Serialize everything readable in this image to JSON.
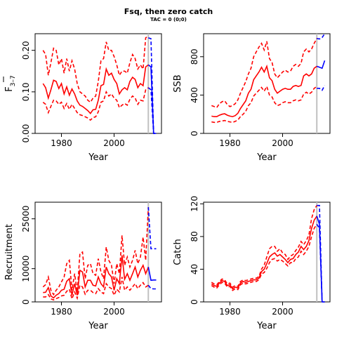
{
  "title": "Fsq, then zero catch",
  "subtitle": "TAC = 0 (0;0)",
  "colors": {
    "historical": "#ff0000",
    "projection": "#0000ff",
    "reference_line": "#c0c0c0",
    "axes": "#000000"
  },
  "chart_data": [
    {
      "type": "line",
      "panel": "top-left",
      "xlabel": "Year",
      "ylabel": "F̄3–7",
      "ylabel_main": "F",
      "ylabel_sub": "3–7",
      "xlim": [
        1970,
        2018
      ],
      "ylim": [
        0,
        0.24
      ],
      "xticks": [
        "1980",
        "2000"
      ],
      "yticks": [
        "0.00",
        "0.10",
        "0.20"
      ],
      "reference_year": 2013,
      "historical": {
        "x": [
          1973,
          1974,
          1975,
          1976,
          1977,
          1978,
          1979,
          1980,
          1981,
          1982,
          1983,
          1984,
          1985,
          1986,
          1987,
          1988,
          1989,
          1990,
          1991,
          1992,
          1993,
          1994,
          1995,
          1996,
          1997,
          1998,
          1999,
          2000,
          2001,
          2002,
          2003,
          2004,
          2005,
          2006,
          2007,
          2008,
          2009,
          2010,
          2011,
          2012,
          2013
        ],
        "median": [
          0.12,
          0.11,
          0.085,
          0.105,
          0.128,
          0.125,
          0.108,
          0.12,
          0.095,
          0.112,
          0.092,
          0.107,
          0.095,
          0.078,
          0.068,
          0.065,
          0.06,
          0.055,
          0.048,
          0.057,
          0.058,
          0.08,
          0.115,
          0.118,
          0.155,
          0.14,
          0.145,
          0.13,
          0.12,
          0.095,
          0.105,
          0.11,
          0.105,
          0.125,
          0.135,
          0.13,
          0.11,
          0.12,
          0.115,
          0.16,
          0.165
        ],
        "upper": [
          0.2,
          0.19,
          0.14,
          0.17,
          0.205,
          0.2,
          0.165,
          0.18,
          0.145,
          0.18,
          0.15,
          0.175,
          0.155,
          0.12,
          0.1,
          0.095,
          0.09,
          0.08,
          0.075,
          0.085,
          0.09,
          0.125,
          0.175,
          0.18,
          0.22,
          0.2,
          0.2,
          0.185,
          0.165,
          0.14,
          0.15,
          0.15,
          0.145,
          0.17,
          0.19,
          0.18,
          0.155,
          0.165,
          0.155,
          0.23,
          0.235
        ],
        "lower": [
          0.075,
          0.07,
          0.05,
          0.065,
          0.08,
          0.078,
          0.07,
          0.075,
          0.06,
          0.072,
          0.058,
          0.07,
          0.06,
          0.05,
          0.045,
          0.043,
          0.04,
          0.037,
          0.032,
          0.038,
          0.04,
          0.052,
          0.075,
          0.078,
          0.1,
          0.09,
          0.095,
          0.085,
          0.08,
          0.062,
          0.068,
          0.072,
          0.068,
          0.082,
          0.09,
          0.085,
          0.07,
          0.08,
          0.078,
          0.105,
          0.11
        ]
      },
      "projection": {
        "x": [
          2013,
          2014,
          2015,
          2016
        ],
        "median": [
          0.165,
          0.16,
          0.0,
          0.0
        ],
        "upper": [
          0.23,
          0.228,
          0.0,
          0.0
        ],
        "lower": [
          0.11,
          0.105,
          0.0,
          0.0
        ]
      }
    },
    {
      "type": "line",
      "panel": "top-right",
      "xlabel": "Year",
      "ylabel": "SSB",
      "xlim": [
        1970,
        2018
      ],
      "ylim": [
        0,
        1040
      ],
      "xticks": [
        "1980",
        "2000"
      ],
      "yticks": [
        "0",
        "400",
        "800"
      ],
      "reference_year": 2013,
      "historical": {
        "x": [
          1973,
          1974,
          1975,
          1976,
          1977,
          1978,
          1979,
          1980,
          1981,
          1982,
          1983,
          1984,
          1985,
          1986,
          1987,
          1988,
          1989,
          1990,
          1991,
          1992,
          1993,
          1994,
          1995,
          1996,
          1997,
          1998,
          1999,
          2000,
          2001,
          2002,
          2003,
          2004,
          2005,
          2006,
          2007,
          2008,
          2009,
          2010,
          2011,
          2012,
          2013
        ],
        "median": [
          180,
          175,
          175,
          190,
          200,
          205,
          190,
          180,
          175,
          185,
          210,
          260,
          300,
          340,
          420,
          460,
          560,
          600,
          640,
          690,
          640,
          700,
          580,
          550,
          460,
          420,
          440,
          460,
          470,
          460,
          460,
          490,
          500,
          490,
          500,
          600,
          620,
          600,
          620,
          680,
          700
        ],
        "upper": [
          290,
          280,
          270,
          310,
          330,
          340,
          300,
          280,
          290,
          310,
          350,
          420,
          480,
          540,
          620,
          680,
          800,
          850,
          900,
          940,
          870,
          960,
          780,
          740,
          620,
          580,
          610,
          640,
          660,
          640,
          650,
          700,
          720,
          700,
          730,
          850,
          880,
          850,
          880,
          940,
          990
        ],
        "lower": [
          120,
          115,
          115,
          125,
          130,
          135,
          125,
          120,
          115,
          125,
          140,
          175,
          200,
          230,
          290,
          320,
          390,
          420,
          450,
          480,
          440,
          490,
          400,
          380,
          320,
          290,
          300,
          320,
          330,
          320,
          320,
          340,
          350,
          340,
          350,
          410,
          430,
          410,
          430,
          470,
          490
        ]
      },
      "projection": {
        "x": [
          2013,
          2014,
          2015,
          2016
        ],
        "median": [
          700,
          690,
          680,
          760
        ],
        "upper": [
          990,
          985,
          1000,
          1040
        ],
        "lower": [
          470,
          470,
          450,
          500
        ]
      }
    },
    {
      "type": "line",
      "panel": "bottom-left",
      "xlabel": "Year",
      "ylabel": "Recruitment",
      "xlim": [
        1970,
        2018
      ],
      "ylim": [
        0,
        30000
      ],
      "xticks": [
        "1980",
        "2000"
      ],
      "yticks": [
        "0",
        "10000",
        "25000"
      ],
      "reference_year": 2013,
      "historical": {
        "x": [
          1973,
          1974,
          1975,
          1976,
          1977,
          1978,
          1979,
          1980,
          1981,
          1982,
          1983,
          1984,
          1985,
          1986,
          1987,
          1988,
          1989,
          1990,
          1991,
          1992,
          1993,
          1994,
          1995,
          1996,
          1997,
          1998,
          1999,
          2000,
          2001,
          2002,
          2003,
          2004,
          2005,
          2006,
          2007,
          2008,
          2009,
          2010,
          2011,
          2012,
          2013
        ],
        "median": [
          2800,
          2900,
          4300,
          1800,
          1200,
          2000,
          2500,
          3500,
          3800,
          6200,
          7000,
          2000,
          5500,
          2000,
          9500,
          9000,
          4500,
          6500,
          6500,
          5000,
          4800,
          7500,
          5500,
          4500,
          10500,
          8500,
          7500,
          3500,
          7000,
          5500,
          14000,
          6800,
          8500,
          6500,
          8500,
          10500,
          7500,
          9500,
          11000,
          8500,
          10500
        ],
        "upper": [
          4500,
          5200,
          7500,
          3500,
          2200,
          3500,
          4500,
          6000,
          7500,
          11500,
          12500,
          3500,
          8500,
          3000,
          14500,
          15000,
          7000,
          11000,
          11500,
          8500,
          8000,
          13000,
          9000,
          7000,
          16500,
          12500,
          11000,
          5500,
          11500,
          8500,
          20000,
          11000,
          13500,
          10500,
          12500,
          15500,
          11500,
          13500,
          19500,
          12500,
          28500
        ],
        "lower": [
          1500,
          1500,
          2200,
          900,
          600,
          1000,
          1300,
          1800,
          2000,
          3200,
          3800,
          900,
          3000,
          1100,
          5000,
          4500,
          2300,
          3500,
          3500,
          2800,
          2500,
          4000,
          3000,
          2500,
          5500,
          4500,
          4000,
          2000,
          3800,
          3000,
          7500,
          3500,
          4500,
          3500,
          4500,
          5500,
          4000,
          5000,
          5800,
          4500,
          5000
        ]
      },
      "projection": {
        "x": [
          2013,
          2014,
          2015,
          2016
        ],
        "median": [
          10500,
          6500,
          6600,
          6600
        ],
        "upper": [
          28500,
          16000,
          16000,
          16000
        ],
        "lower": [
          5000,
          4000,
          3900,
          3900
        ]
      }
    },
    {
      "type": "line",
      "panel": "bottom-right",
      "xlabel": "Year",
      "ylabel": "Catch",
      "xlim": [
        1970,
        2018
      ],
      "ylim": [
        0,
        122
      ],
      "xticks": [
        "1980",
        "2000"
      ],
      "yticks": [
        "0",
        "40",
        "80",
        "120"
      ],
      "reference_year": 2013,
      "historical": {
        "x": [
          1973,
          1974,
          1975,
          1976,
          1977,
          1978,
          1979,
          1980,
          1981,
          1982,
          1983,
          1984,
          1985,
          1986,
          1987,
          1988,
          1989,
          1990,
          1991,
          1992,
          1993,
          1994,
          1995,
          1996,
          1997,
          1998,
          1999,
          2000,
          2001,
          2002,
          2003,
          2004,
          2005,
          2006,
          2007,
          2008,
          2009,
          2010,
          2011,
          2012,
          2013
        ],
        "median": [
          22,
          20,
          19,
          23,
          26,
          25,
          20,
          21,
          16,
          18,
          17,
          23,
          25,
          24,
          25,
          26,
          27,
          27,
          29,
          37,
          40,
          47,
          55,
          58,
          60,
          56,
          58,
          55,
          52,
          48,
          52,
          53,
          58,
          61,
          68,
          64,
          68,
          75,
          90,
          100,
          105
        ],
        "upper": [
          24,
          22,
          21,
          25,
          28,
          27,
          22,
          23,
          18,
          20,
          19,
          25,
          27,
          26,
          27,
          28,
          29,
          29,
          31,
          40,
          45,
          55,
          65,
          68,
          68,
          62,
          65,
          60,
          58,
          52,
          56,
          58,
          63,
          67,
          74,
          70,
          75,
          82,
          102,
          113,
          118
        ],
        "lower": [
          20,
          18,
          17,
          21,
          24,
          23,
          18,
          19,
          14,
          16,
          15,
          21,
          23,
          22,
          23,
          24,
          25,
          25,
          27,
          34,
          36,
          41,
          48,
          52,
          53,
          50,
          52,
          50,
          47,
          44,
          48,
          48,
          53,
          55,
          62,
          58,
          62,
          68,
          80,
          90,
          95
        ]
      },
      "projection": {
        "x": [
          2013,
          2014,
          2015,
          2016
        ],
        "median": [
          105,
          95,
          0,
          0
        ],
        "upper": [
          118,
          118,
          0,
          0
        ],
        "lower": [
          95,
          90,
          0,
          0
        ]
      }
    }
  ]
}
